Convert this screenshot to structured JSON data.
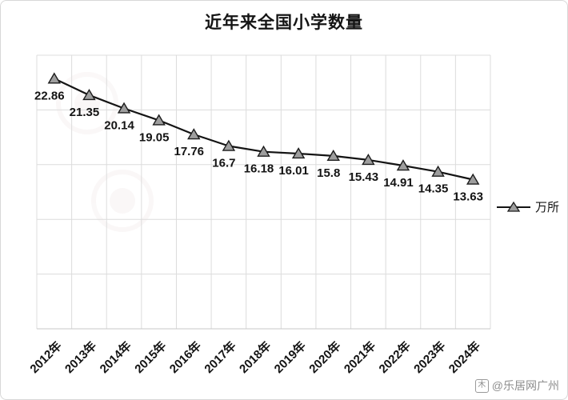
{
  "chart": {
    "title": "近年来全国小学数量",
    "watermark": "@乐居网广州",
    "watermark_icon": "木"
  },
  "chart_data": {
    "type": "line",
    "title": "近年来全国小学数量",
    "categories": [
      "2012年",
      "2013年",
      "2014年",
      "2015年",
      "2016年",
      "2017年",
      "2018年",
      "2019年",
      "2020年",
      "2021年",
      "2022年",
      "2023年",
      "2024年"
    ],
    "series": [
      {
        "name": "万所",
        "values": [
          22.86,
          21.35,
          20.14,
          19.05,
          17.76,
          16.7,
          16.18,
          16.01,
          15.8,
          15.43,
          14.91,
          14.35,
          13.63
        ]
      }
    ],
    "xlabel": "",
    "ylabel": "",
    "ylim": [
      0,
      25
    ],
    "y_grid_step": 5,
    "grid": true,
    "legend_position": "right",
    "marker": "triangle",
    "line_color": "#141414",
    "marker_fill": "#9e9e9e",
    "marker_stroke": "#1c1c1c",
    "grid_color": "#dcdcdc"
  }
}
